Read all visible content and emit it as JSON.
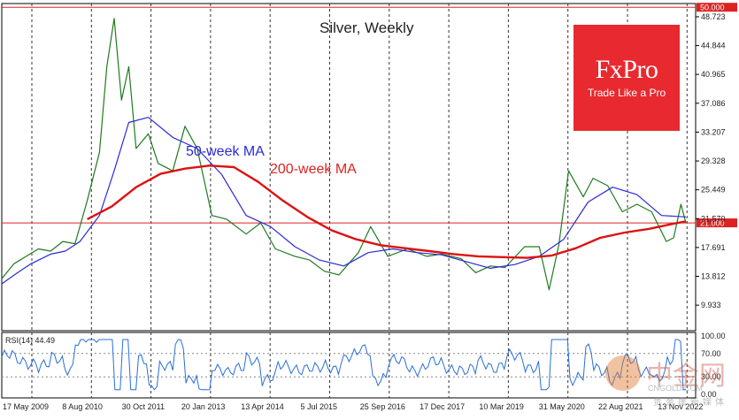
{
  "chart_data": {
    "type": "line",
    "title": "Silver, Weekly",
    "annotations": {
      "ma50": "50-week MA",
      "ma200": "200-week MA"
    },
    "price_axis": {
      "ticks": [
        "48.723",
        "44.844",
        "40.965",
        "37.086",
        "33.207",
        "29.328",
        "25.449",
        "21.570",
        "17.691",
        "13.812",
        "9.933"
      ],
      "tick_values": [
        48.723,
        44.844,
        40.965,
        37.086,
        33.207,
        29.328,
        25.449,
        21.57,
        17.691,
        13.812,
        9.933
      ],
      "ymin": 6.5,
      "ymax": 50.5
    },
    "hlines": [
      {
        "label": "50.000",
        "value": 50.0,
        "color": "#dd2222"
      },
      {
        "label": "21.000",
        "value": 21.0,
        "color": "#dd2222"
      }
    ],
    "x_ticks": [
      "17 May 2009",
      "8 Aug 2010",
      "30 Oct 2011",
      "20 Jan 2013",
      "13 Apr 2014",
      "5 Jul 2015",
      "25 Sep 2016",
      "17 Dec 2017",
      "10 Mar 2019",
      "31 May 2020",
      "22 Aug 2021",
      "13 Nov 2022"
    ],
    "series": [
      {
        "name": "50-week MA",
        "color": "#2a2ad8",
        "x": [
          2009.0,
          2009.3,
          2009.6,
          2010.0,
          2010.3,
          2010.6,
          2011.0,
          2011.3,
          2011.6,
          2012.0,
          2012.5,
          2013.0,
          2013.5,
          2014.0,
          2014.5,
          2015.0,
          2015.5,
          2016.0,
          2016.5,
          2017.0,
          2017.5,
          2018.0,
          2018.5,
          2019.0,
          2019.5,
          2020.0,
          2020.5,
          2021.0,
          2021.5,
          2022.0,
          2022.5,
          2023.0
        ],
        "values": [
          12.8,
          14.2,
          15.5,
          16.8,
          17.2,
          18.5,
          22.0,
          28.0,
          34.5,
          35.2,
          32.5,
          31.0,
          27.5,
          22.0,
          20.5,
          17.8,
          16.0,
          15.2,
          17.0,
          17.5,
          17.0,
          16.7,
          15.8,
          14.9,
          15.4,
          16.5,
          18.8,
          23.8,
          25.8,
          24.8,
          22.0,
          21.8
        ]
      },
      {
        "name": "200-week MA",
        "color": "#dd1111",
        "x": [
          2010.75,
          2011.25,
          2011.75,
          2012.25,
          2012.75,
          2013.25,
          2013.75,
          2014.25,
          2014.75,
          2015.25,
          2015.75,
          2016.25,
          2016.75,
          2017.25,
          2017.75,
          2018.25,
          2018.75,
          2019.25,
          2019.75,
          2020.25,
          2020.75,
          2021.25,
          2021.75,
          2022.25,
          2022.75,
          2023.0
        ],
        "values": [
          21.5,
          23.2,
          25.8,
          27.6,
          28.3,
          28.7,
          28.5,
          26.5,
          24.0,
          21.8,
          20.0,
          18.8,
          18.0,
          17.6,
          17.2,
          16.8,
          16.5,
          16.4,
          16.3,
          16.6,
          17.6,
          19.0,
          19.7,
          20.2,
          20.9,
          21.2
        ]
      },
      {
        "name": "Price",
        "color": "#1f7a1f",
        "x": [
          2009.0,
          2009.25,
          2009.5,
          2009.75,
          2010.0,
          2010.25,
          2010.5,
          2010.75,
          2011.0,
          2011.15,
          2011.3,
          2011.45,
          2011.6,
          2011.75,
          2012.0,
          2012.2,
          2012.5,
          2012.75,
          2013.0,
          2013.3,
          2013.6,
          2014.0,
          2014.3,
          2014.6,
          2015.0,
          2015.3,
          2015.6,
          2015.9,
          2016.3,
          2016.55,
          2016.9,
          2017.3,
          2017.7,
          2018.0,
          2018.4,
          2018.7,
          2019.0,
          2019.3,
          2019.7,
          2020.0,
          2020.2,
          2020.4,
          2020.6,
          2020.9,
          2021.1,
          2021.4,
          2021.7,
          2022.0,
          2022.3,
          2022.6,
          2022.75,
          2022.9,
          2023.0
        ],
        "values": [
          13.5,
          15.5,
          16.5,
          17.5,
          17.2,
          18.5,
          18.2,
          24.0,
          30.5,
          42.0,
          48.5,
          37.5,
          42.0,
          31.0,
          33.0,
          29.0,
          28.0,
          34.0,
          31.0,
          22.0,
          21.5,
          19.5,
          21.0,
          17.5,
          16.5,
          16.0,
          14.5,
          14.0,
          17.0,
          20.5,
          16.5,
          17.5,
          16.5,
          16.8,
          16.2,
          14.3,
          15.2,
          15.0,
          17.8,
          17.8,
          12.0,
          18.0,
          28.0,
          24.5,
          27.0,
          26.0,
          22.5,
          23.5,
          22.5,
          18.5,
          19.0,
          23.5,
          21.0
        ]
      }
    ],
    "rsi": {
      "label": "RSI(14) 44.49",
      "ticks": [
        "100.00",
        "70.00",
        "30.00",
        "0.00"
      ],
      "tick_values": [
        100,
        70,
        30,
        0
      ],
      "color": "#2a6fd8"
    },
    "grid": "vertical dashed at x-axis ticks",
    "legend": "none"
  },
  "brand": {
    "logo": "FxPro",
    "tagline": "Trade Like a Pro",
    "color": "#e8292f"
  },
  "watermark": {
    "cn": "中金网",
    "url": "CNGOLD.COM",
    "sub": "贵金属新媒体"
  }
}
